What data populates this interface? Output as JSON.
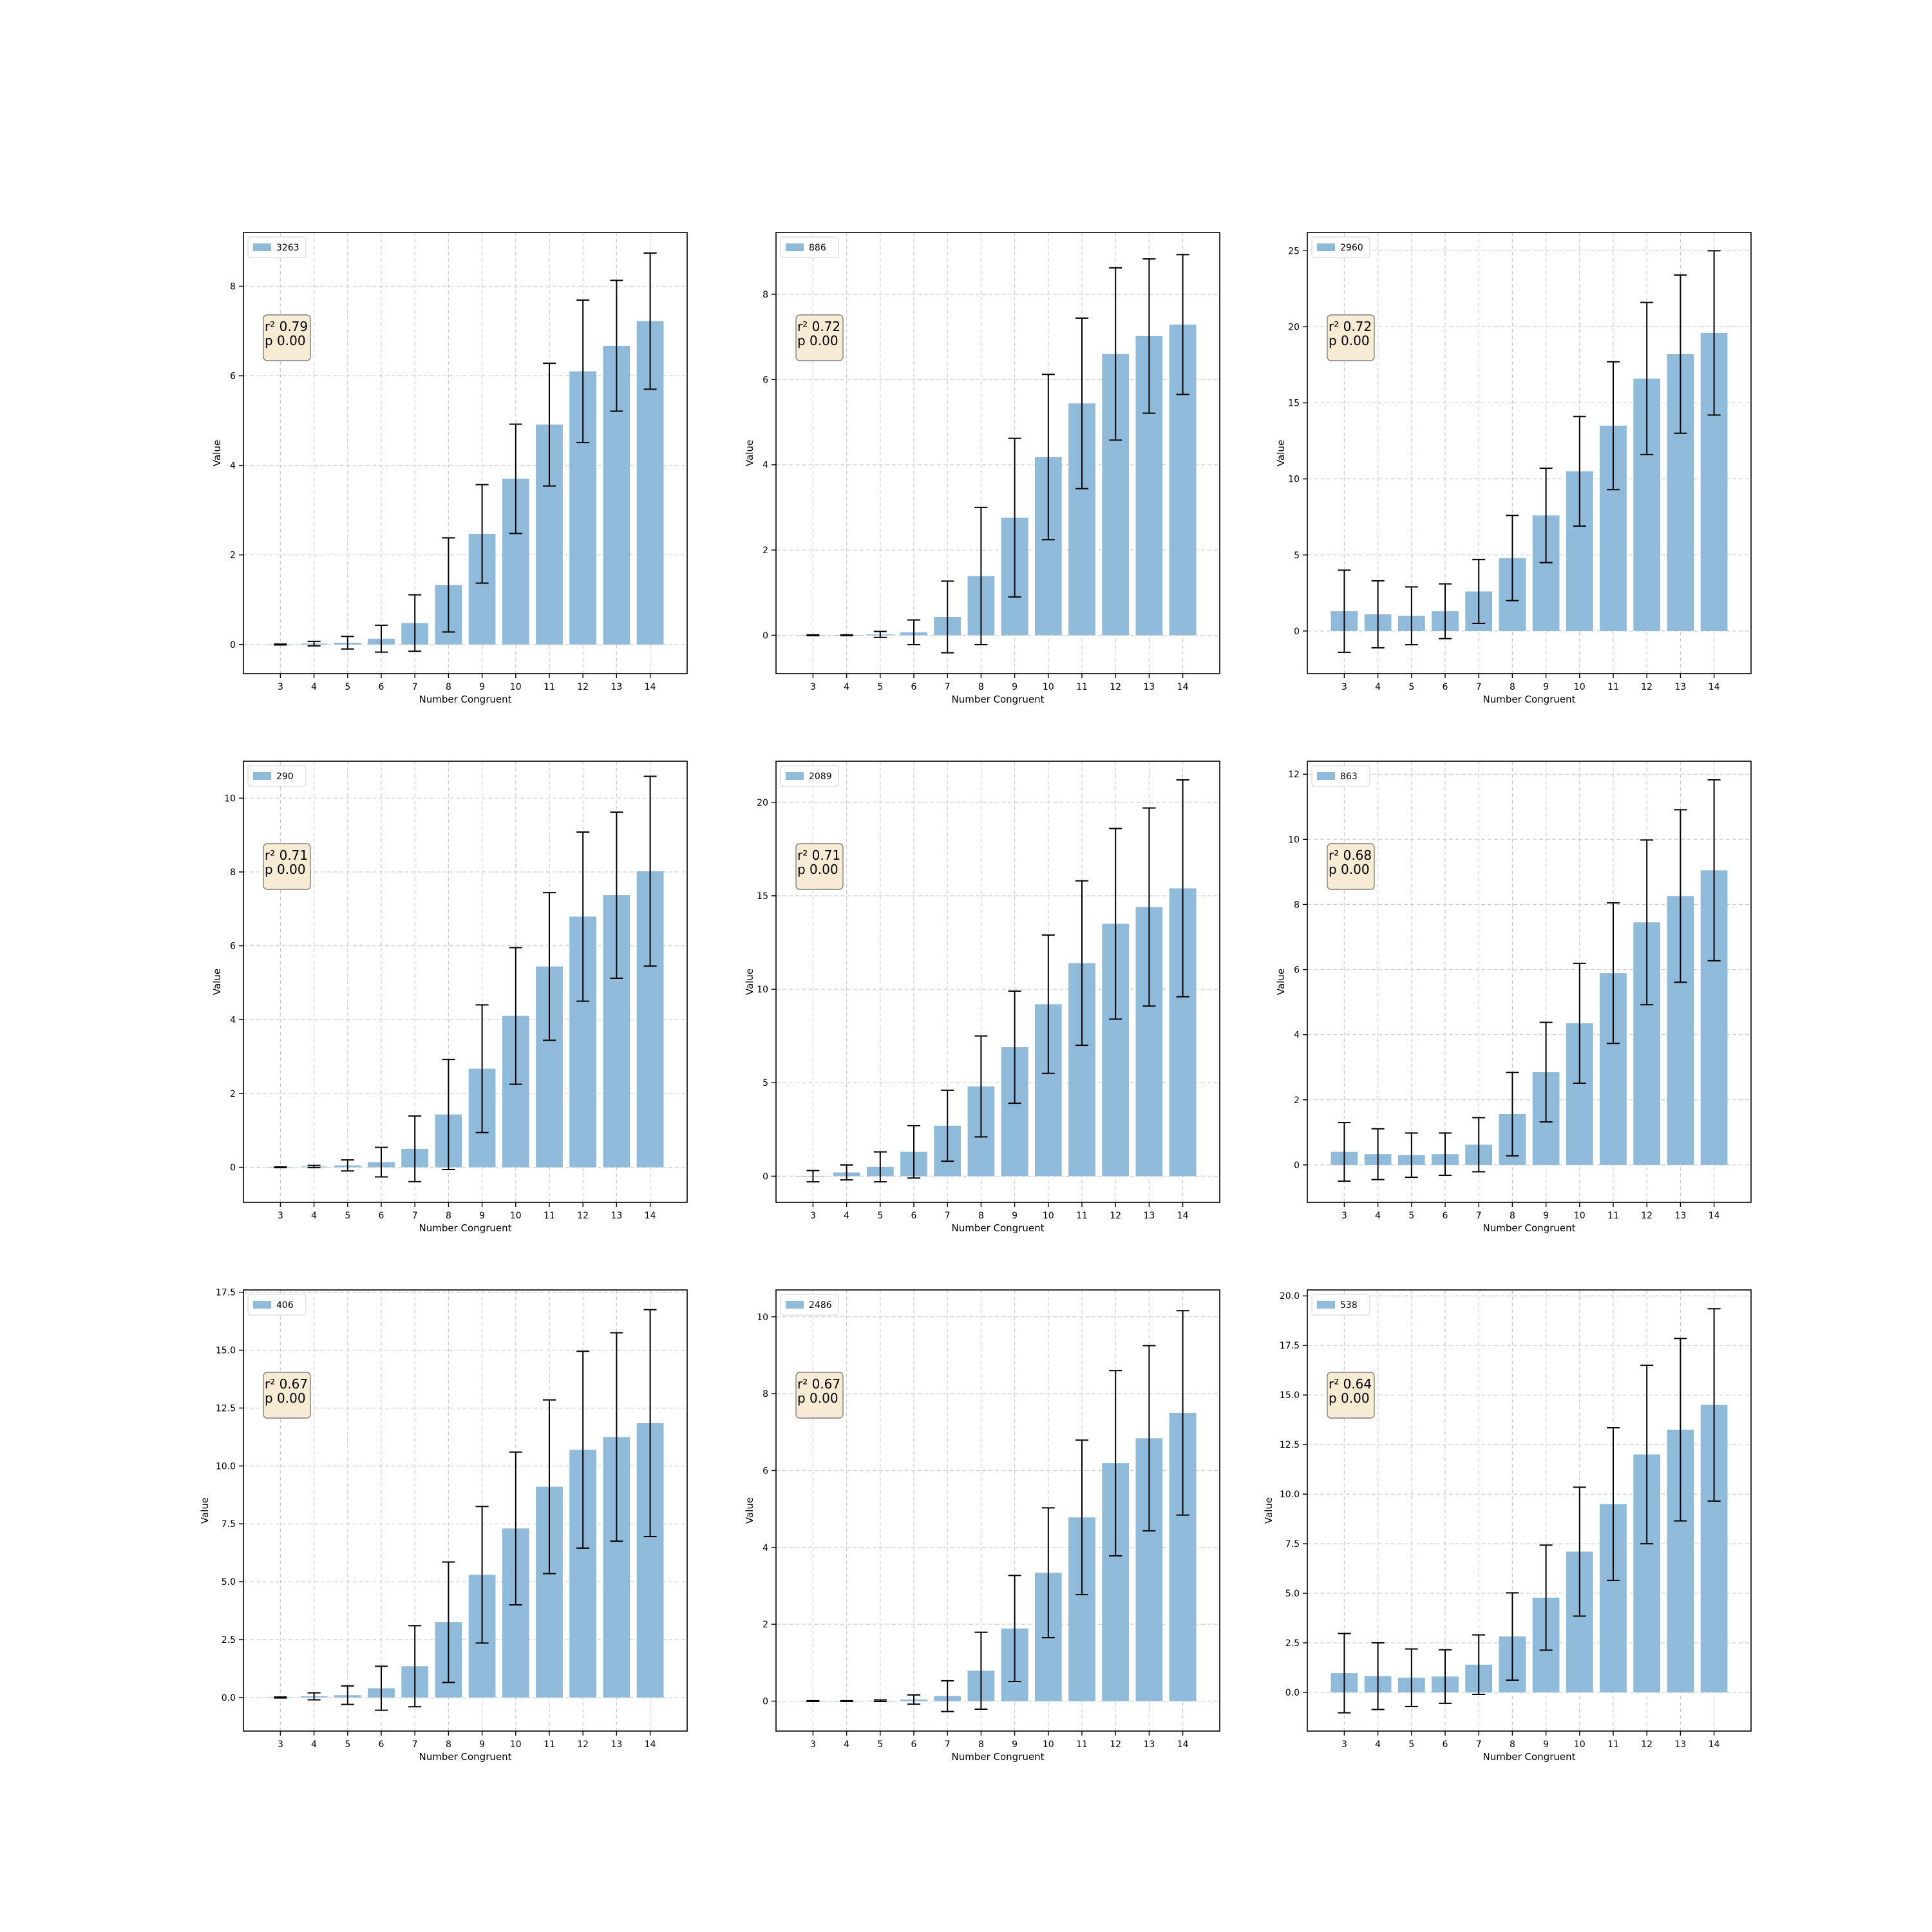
{
  "chart_data": [
    {
      "type": "bar",
      "legend": "3263",
      "stats": {
        "r2": "r² 0.79",
        "p": "p 0.00"
      },
      "xlabel": "Number Congruent",
      "ylabel": "Value",
      "categories": [
        "3",
        "4",
        "5",
        "6",
        "7",
        "8",
        "9",
        "10",
        "11",
        "12",
        "13",
        "14"
      ],
      "values": [
        0.0,
        0.02,
        0.04,
        0.13,
        0.48,
        1.33,
        2.47,
        3.7,
        4.91,
        6.1,
        6.67,
        7.22
      ],
      "errors": [
        0.01,
        0.05,
        0.14,
        0.3,
        0.63,
        1.05,
        1.1,
        1.22,
        1.37,
        1.59,
        1.46,
        1.52
      ],
      "ylim": [
        -0.65,
        9.2
      ],
      "yticks": [
        0,
        2,
        4,
        6,
        8
      ],
      "tick_decimals": 0,
      "grid": true,
      "legend_position": "upper left",
      "error_bars": "mean ± sd"
    },
    {
      "type": "bar",
      "legend": "886",
      "stats": {
        "r2": "r² 0.72",
        "p": "p 0.00"
      },
      "xlabel": "Number Congruent",
      "ylabel": "Value",
      "categories": [
        "3",
        "4",
        "5",
        "6",
        "7",
        "8",
        "9",
        "10",
        "11",
        "12",
        "13",
        "14"
      ],
      "values": [
        0.0,
        0.0,
        0.02,
        0.07,
        0.43,
        1.39,
        2.76,
        4.18,
        5.44,
        6.6,
        7.02,
        7.29
      ],
      "errors": [
        0.01,
        0.01,
        0.07,
        0.29,
        0.84,
        1.61,
        1.86,
        1.94,
        2.0,
        2.02,
        1.81,
        1.64
      ],
      "ylim": [
        -0.9,
        9.45
      ],
      "yticks": [
        0,
        2,
        4,
        6,
        8
      ],
      "tick_decimals": 0,
      "grid": true,
      "legend_position": "upper left",
      "error_bars": "mean ± sd"
    },
    {
      "type": "bar",
      "legend": "2960",
      "stats": {
        "r2": "r² 0.72",
        "p": "p 0.00"
      },
      "xlabel": "Number Congruent",
      "ylabel": "Value",
      "categories": [
        "3",
        "4",
        "5",
        "6",
        "7",
        "8",
        "9",
        "10",
        "11",
        "12",
        "13",
        "14"
      ],
      "values": [
        1.3,
        1.1,
        1.0,
        1.3,
        2.6,
        4.8,
        7.6,
        10.5,
        13.5,
        16.6,
        18.2,
        19.6
      ],
      "errors": [
        2.7,
        2.2,
        1.9,
        1.8,
        2.1,
        2.8,
        3.1,
        3.6,
        4.2,
        5.0,
        5.2,
        5.4
      ],
      "ylim": [
        -2.8,
        26.2
      ],
      "yticks": [
        0,
        5,
        10,
        15,
        20,
        25
      ],
      "tick_decimals": 0,
      "grid": true,
      "legend_position": "upper left",
      "error_bars": "mean ± sd"
    },
    {
      "type": "bar",
      "legend": "290",
      "stats": {
        "r2": "r² 0.71",
        "p": "p 0.00"
      },
      "xlabel": "Number Congruent",
      "ylabel": "Value",
      "categories": [
        "3",
        "4",
        "5",
        "6",
        "7",
        "8",
        "9",
        "10",
        "11",
        "12",
        "13",
        "14"
      ],
      "values": [
        0.0,
        0.02,
        0.05,
        0.14,
        0.5,
        1.43,
        2.67,
        4.1,
        5.44,
        6.79,
        7.37,
        8.02
      ],
      "errors": [
        0.01,
        0.03,
        0.15,
        0.4,
        0.89,
        1.49,
        1.73,
        1.85,
        2.0,
        2.29,
        2.25,
        2.57
      ],
      "ylim": [
        -0.95,
        11.0
      ],
      "yticks": [
        0,
        2,
        4,
        6,
        8,
        10
      ],
      "tick_decimals": 0,
      "grid": true,
      "legend_position": "upper left",
      "error_bars": "mean ± sd"
    },
    {
      "type": "bar",
      "legend": "2089",
      "stats": {
        "r2": "r² 0.71",
        "p": "p 0.00"
      },
      "xlabel": "Number Congruent",
      "ylabel": "Value",
      "categories": [
        "3",
        "4",
        "5",
        "6",
        "7",
        "8",
        "9",
        "10",
        "11",
        "12",
        "13",
        "14"
      ],
      "values": [
        0.0,
        0.2,
        0.5,
        1.3,
        2.7,
        4.8,
        6.9,
        9.2,
        11.4,
        13.5,
        14.4,
        15.4
      ],
      "errors": [
        0.3,
        0.4,
        0.8,
        1.4,
        1.9,
        2.7,
        3.0,
        3.7,
        4.4,
        5.1,
        5.3,
        5.8
      ],
      "ylim": [
        -1.4,
        22.2
      ],
      "yticks": [
        0,
        5,
        10,
        15,
        20
      ],
      "tick_decimals": 0,
      "grid": true,
      "legend_position": "upper left",
      "error_bars": "mean ± sd"
    },
    {
      "type": "bar",
      "legend": "863",
      "stats": {
        "r2": "r² 0.68",
        "p": "p 0.00"
      },
      "xlabel": "Number Congruent",
      "ylabel": "Value",
      "categories": [
        "3",
        "4",
        "5",
        "6",
        "7",
        "8",
        "9",
        "10",
        "11",
        "12",
        "13",
        "14"
      ],
      "values": [
        0.4,
        0.33,
        0.3,
        0.33,
        0.62,
        1.56,
        2.85,
        4.35,
        5.89,
        7.45,
        8.26,
        9.05
      ],
      "errors": [
        0.9,
        0.78,
        0.68,
        0.65,
        0.83,
        1.28,
        1.53,
        1.84,
        2.16,
        2.53,
        2.65,
        2.78
      ],
      "ylim": [
        -1.15,
        12.4
      ],
      "yticks": [
        0,
        2,
        4,
        6,
        8,
        10,
        12
      ],
      "tick_decimals": 0,
      "grid": true,
      "legend_position": "upper left",
      "error_bars": "mean ± sd"
    },
    {
      "type": "bar",
      "legend": "406",
      "stats": {
        "r2": "r² 0.67",
        "p": "p 0.00"
      },
      "xlabel": "Number Congruent",
      "ylabel": "Value",
      "categories": [
        "3",
        "4",
        "5",
        "6",
        "7",
        "8",
        "9",
        "10",
        "11",
        "12",
        "13",
        "14"
      ],
      "values": [
        0.0,
        0.05,
        0.1,
        0.4,
        1.35,
        3.25,
        5.3,
        7.3,
        9.1,
        10.7,
        11.25,
        11.85
      ],
      "errors": [
        0.02,
        0.15,
        0.4,
        0.95,
        1.75,
        2.6,
        2.95,
        3.3,
        3.75,
        4.25,
        4.5,
        4.9
      ],
      "ylim": [
        -1.45,
        17.6
      ],
      "yticks": [
        0.0,
        2.5,
        5.0,
        7.5,
        10.0,
        12.5,
        15.0,
        17.5
      ],
      "tick_decimals": 1,
      "grid": true,
      "legend_position": "upper left",
      "error_bars": "mean ± sd"
    },
    {
      "type": "bar",
      "legend": "2486",
      "stats": {
        "r2": "r² 0.67",
        "p": "p 0.00"
      },
      "xlabel": "Number Congruent",
      "ylabel": "Value",
      "categories": [
        "3",
        "4",
        "5",
        "6",
        "7",
        "8",
        "9",
        "10",
        "11",
        "12",
        "13",
        "14"
      ],
      "values": [
        0.0,
        0.0,
        0.01,
        0.04,
        0.13,
        0.79,
        1.89,
        3.34,
        4.78,
        6.19,
        6.84,
        7.5
      ],
      "errors": [
        0.01,
        0.01,
        0.02,
        0.12,
        0.4,
        1.0,
        1.38,
        1.69,
        2.01,
        2.41,
        2.41,
        2.66
      ],
      "ylim": [
        -0.78,
        10.7
      ],
      "yticks": [
        0,
        2,
        4,
        6,
        8,
        10
      ],
      "tick_decimals": 0,
      "grid": true,
      "legend_position": "upper left",
      "error_bars": "mean ± sd"
    },
    {
      "type": "bar",
      "legend": "538",
      "stats": {
        "r2": "r² 0.64",
        "p": "p 0.00"
      },
      "xlabel": "Number Congruent",
      "ylabel": "Value",
      "categories": [
        "3",
        "4",
        "5",
        "6",
        "7",
        "8",
        "9",
        "10",
        "11",
        "12",
        "13",
        "14"
      ],
      "values": [
        0.97,
        0.82,
        0.74,
        0.8,
        1.4,
        2.82,
        4.78,
        7.1,
        9.5,
        12.0,
        13.25,
        14.5
      ],
      "errors": [
        2.0,
        1.68,
        1.45,
        1.35,
        1.5,
        2.2,
        2.65,
        3.25,
        3.85,
        4.5,
        4.6,
        4.85
      ],
      "ylim": [
        -1.95,
        20.3
      ],
      "yticks": [
        0.0,
        2.5,
        5.0,
        7.5,
        10.0,
        12.5,
        15.0,
        17.5,
        20.0
      ],
      "tick_decimals": 1,
      "grid": true,
      "legend_position": "upper left",
      "error_bars": "mean ± sd"
    }
  ],
  "colors": {
    "bar": "#8fbad9",
    "stats_box_fill": "#f7ebd4",
    "stats_box_edge": "#7f7f7f",
    "grid": "#cfcfcf"
  }
}
